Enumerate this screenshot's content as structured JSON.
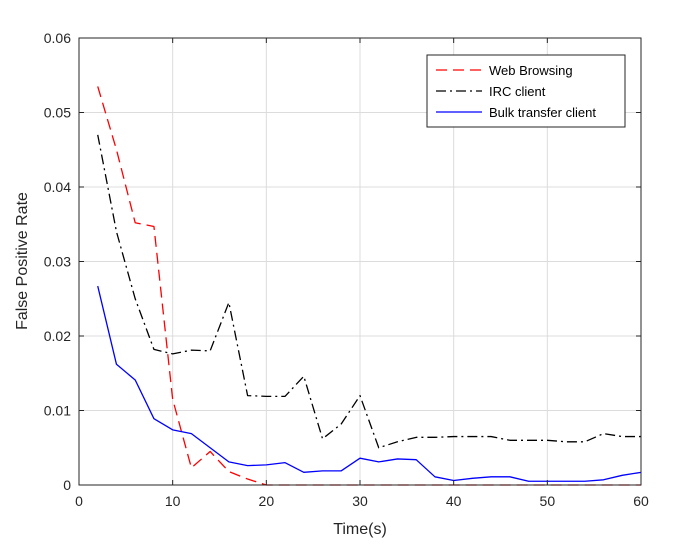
{
  "chart_data": {
    "type": "line",
    "title": "",
    "xlabel": "Time(s)",
    "ylabel": "False Positive Rate",
    "xlim": [
      0,
      60
    ],
    "ylim": [
      0,
      0.06
    ],
    "xticks": [
      0,
      10,
      20,
      30,
      40,
      50,
      60
    ],
    "xtick_labels": [
      "0",
      "10",
      "20",
      "30",
      "40",
      "50",
      "60"
    ],
    "yticks": [
      0,
      0.01,
      0.02,
      0.03,
      0.04,
      0.05,
      0.06
    ],
    "ytick_labels": [
      "0",
      "0.01",
      "0.02",
      "0.03",
      "0.04",
      "0.05",
      "0.06"
    ],
    "grid": true,
    "legend_position": "top-right",
    "x": [
      2,
      4,
      6,
      8,
      10,
      12,
      14,
      16,
      18,
      20,
      22,
      24,
      26,
      28,
      30,
      32,
      34,
      36,
      38,
      40,
      42,
      44,
      46,
      48,
      50,
      52,
      54,
      56,
      58,
      60
    ],
    "series": [
      {
        "name": "Web Browsing",
        "color": "#ff0000",
        "style": "dashed",
        "values": [
          0.0535,
          0.045,
          0.0352,
          0.0347,
          0.0115,
          0.0023,
          0.0045,
          0.0018,
          0.0008,
          0.0,
          0.0,
          0.0,
          0.0,
          0.0,
          0.0,
          0.0,
          0.0,
          0.0,
          0.0,
          0.0,
          0.0,
          0.0,
          0.0,
          0.0,
          0.0,
          0.0,
          0.0,
          0.0,
          0.0,
          0.0
        ]
      },
      {
        "name": "IRC client",
        "color": "#000000",
        "style": "dashdot",
        "values": [
          0.047,
          0.034,
          0.025,
          0.0182,
          0.0176,
          0.0181,
          0.018,
          0.0245,
          0.012,
          0.0119,
          0.0119,
          0.0146,
          0.0062,
          0.0082,
          0.012,
          0.005,
          0.0058,
          0.0064,
          0.0064,
          0.0065,
          0.0065,
          0.0065,
          0.006,
          0.006,
          0.006,
          0.0058,
          0.0058,
          0.0069,
          0.0065,
          0.0065
        ]
      },
      {
        "name": "Bulk transfer client",
        "color": "#0000ff",
        "style": "solid",
        "values": [
          0.0267,
          0.0162,
          0.0141,
          0.0089,
          0.0074,
          0.0069,
          0.005,
          0.0031,
          0.0026,
          0.0027,
          0.003,
          0.0017,
          0.0019,
          0.0019,
          0.0036,
          0.0031,
          0.0035,
          0.0034,
          0.0011,
          0.0006,
          0.0009,
          0.0011,
          0.0011,
          0.0005,
          0.0005,
          0.0005,
          0.0005,
          0.0007,
          0.0013,
          0.0017
        ]
      }
    ]
  }
}
